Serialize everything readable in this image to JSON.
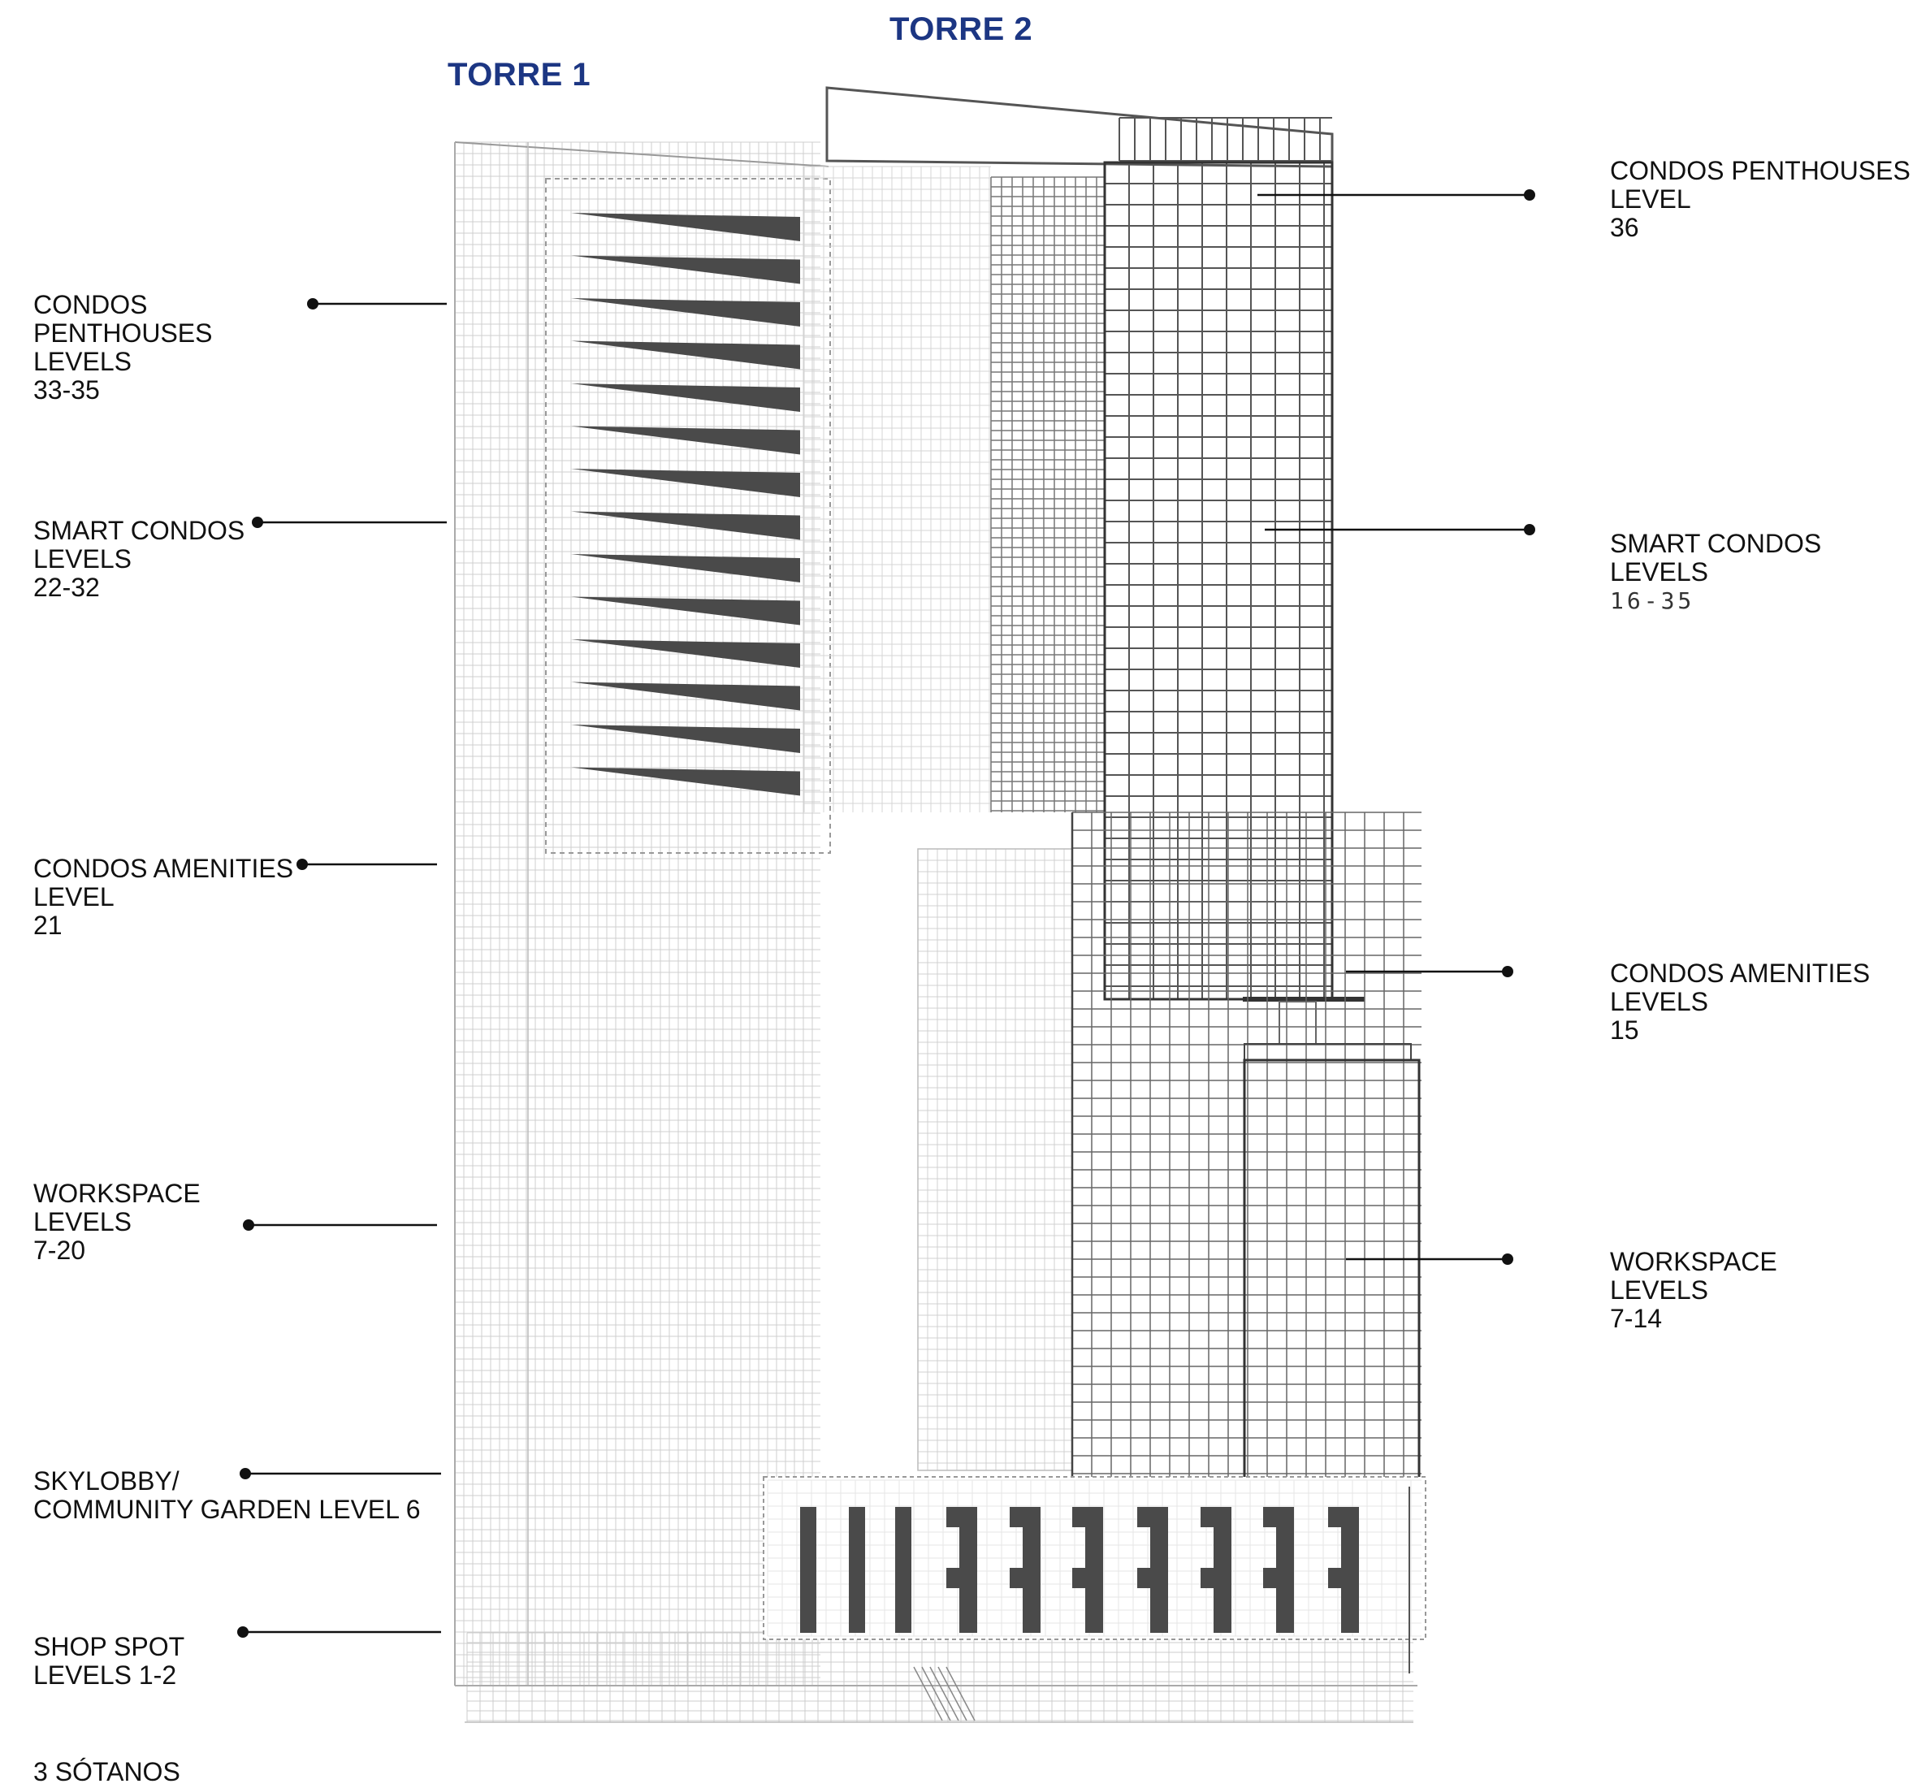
{
  "towers": {
    "t1": "TORRE 1",
    "t2": "TORRE 2"
  },
  "left_labels": [
    {
      "lines": [
        "CONDOS",
        "PENTHOUSES",
        "LEVELS",
        "33-35"
      ]
    },
    {
      "lines": [
        "SMART CONDOS",
        "LEVELS",
        "22-32"
      ]
    },
    {
      "lines": [
        "CONDOS AMENITIES",
        "LEVEL",
        "21"
      ]
    },
    {
      "lines": [
        "WORKSPACE",
        "LEVELS",
        "7-20"
      ]
    },
    {
      "lines": [
        "SKYLOBBY/",
        "COMMUNITY GARDEN LEVEL 6"
      ]
    },
    {
      "lines": [
        "SHOP SPOT",
        "LEVELS 1-2"
      ]
    },
    {
      "lines": [
        "3 SÓTANOS"
      ]
    }
  ],
  "right_labels": [
    {
      "lines": [
        "CONDOS PENTHOUSES",
        "LEVEL",
        "36"
      ]
    },
    {
      "lines": [
        "SMART CONDOS",
        "LEVELS",
        "16-35"
      ]
    },
    {
      "lines": [
        "CONDOS AMENITIES",
        "LEVELS",
        "15"
      ]
    },
    {
      "lines": [
        "WORKSPACE",
        "LEVELS",
        "7-14"
      ]
    }
  ],
  "colors": {
    "title": "#1c3683",
    "text": "#111111",
    "line": "#222222",
    "fill": "#4a4a4a"
  }
}
